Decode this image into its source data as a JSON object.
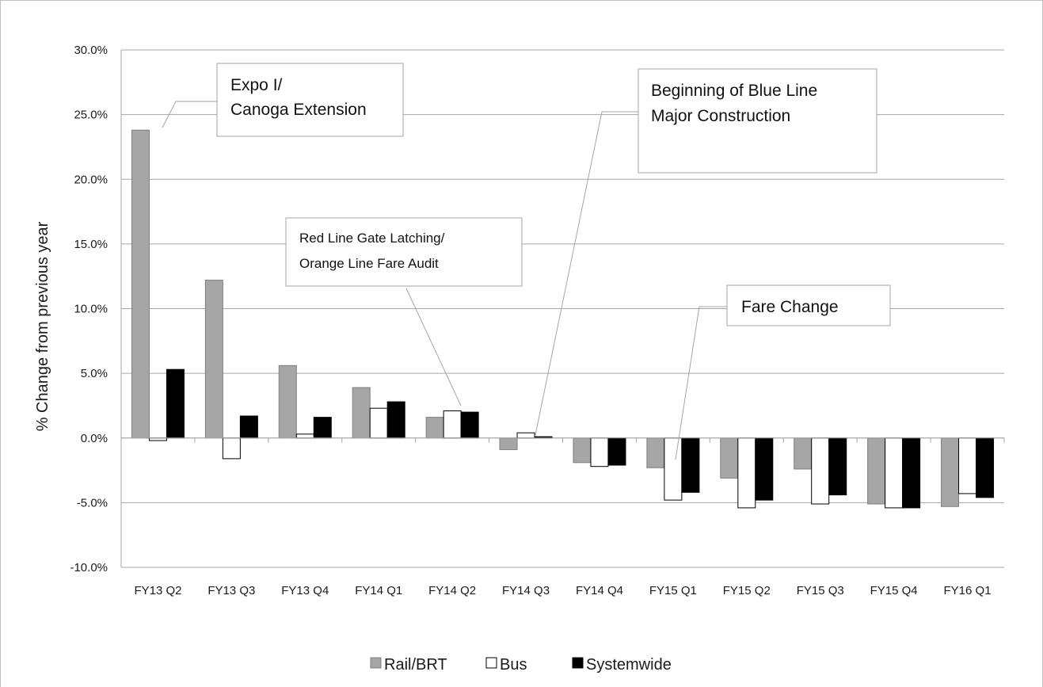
{
  "chart_data": {
    "type": "bar",
    "title": "",
    "xlabel": "",
    "ylabel": "% Change from previous year",
    "ylim": [
      -10,
      30
    ],
    "ytick_step": 5,
    "ytick_labels": [
      "-10.0%",
      "-5.0%",
      "0.0%",
      "5.0%",
      "10.0%",
      "15.0%",
      "20.0%",
      "25.0%",
      "30.0%"
    ],
    "grid": true,
    "legend_position": "bottom",
    "categories": [
      "FY13 Q2",
      "FY13 Q3",
      "FY13 Q4",
      "FY14 Q1",
      "FY14 Q2",
      "FY14 Q3",
      "FY14 Q4",
      "FY15 Q1",
      "FY15 Q2",
      "FY15 Q3",
      "FY15 Q4",
      "FY16 Q1"
    ],
    "series": [
      {
        "name": "Rail/BRT",
        "color": "#a6a6a6",
        "values": [
          23.8,
          12.2,
          5.6,
          3.9,
          1.6,
          -0.9,
          -1.9,
          -2.3,
          -3.1,
          -2.4,
          -5.1,
          -5.3
        ]
      },
      {
        "name": "Bus",
        "color": "#ffffff",
        "values": [
          -0.2,
          -1.6,
          0.3,
          2.3,
          2.1,
          0.4,
          -2.2,
          -4.8,
          -5.4,
          -5.1,
          -5.4,
          -4.3
        ]
      },
      {
        "name": "Systemwide",
        "color": "#000000",
        "values": [
          5.3,
          1.7,
          1.6,
          2.8,
          2.0,
          0.1,
          -2.1,
          -4.2,
          -4.8,
          -4.4,
          -5.4,
          -4.6
        ]
      }
    ],
    "annotations": [
      {
        "lines": [
          "Expo I/",
          "Canoga Extension"
        ]
      },
      {
        "lines": [
          "Beginning of Blue Line",
          "Major Construction"
        ]
      },
      {
        "lines": [
          "Red Line Gate Latching/",
          "Orange Line Fare Audit"
        ]
      },
      {
        "lines": [
          "Fare Change"
        ]
      }
    ]
  }
}
